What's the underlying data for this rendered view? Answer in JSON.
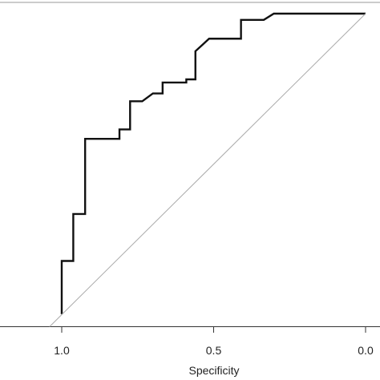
{
  "chart_data": {
    "type": "line",
    "title": "",
    "xlabel": "Specificity",
    "ylabel": "",
    "x_reversed": true,
    "xlim": [
      -0.03,
      1.05
    ],
    "ylim": [
      0,
      1.05
    ],
    "x_ticks": [
      {
        "value": 1.0,
        "label": "1.0"
      },
      {
        "value": 0.5,
        "label": "0.5"
      },
      {
        "value": 0.0,
        "label": "0.0"
      }
    ],
    "grid": false,
    "legend": "none",
    "series": [
      {
        "role": "roc-curve",
        "color": "#111111",
        "points": [
          [
            1.0,
            0.04
          ],
          [
            1.0,
            0.21
          ],
          [
            0.962,
            0.21
          ],
          [
            0.962,
            0.36
          ],
          [
            0.923,
            0.36
          ],
          [
            0.923,
            0.6
          ],
          [
            0.81,
            0.6
          ],
          [
            0.81,
            0.63
          ],
          [
            0.775,
            0.63
          ],
          [
            0.775,
            0.72
          ],
          [
            0.735,
            0.72
          ],
          [
            0.7,
            0.745
          ],
          [
            0.668,
            0.745
          ],
          [
            0.668,
            0.78
          ],
          [
            0.59,
            0.78
          ],
          [
            0.59,
            0.79
          ],
          [
            0.56,
            0.79
          ],
          [
            0.56,
            0.88
          ],
          [
            0.515,
            0.92
          ],
          [
            0.41,
            0.92
          ],
          [
            0.41,
            0.98
          ],
          [
            0.335,
            0.98
          ],
          [
            0.302,
            1.0
          ],
          [
            0.0,
            1.0
          ]
        ]
      },
      {
        "role": "reference-diagonal",
        "color": "#aaaaaa",
        "points": [
          [
            1.04,
            0.0
          ],
          [
            0.0,
            1.0
          ]
        ]
      }
    ]
  }
}
